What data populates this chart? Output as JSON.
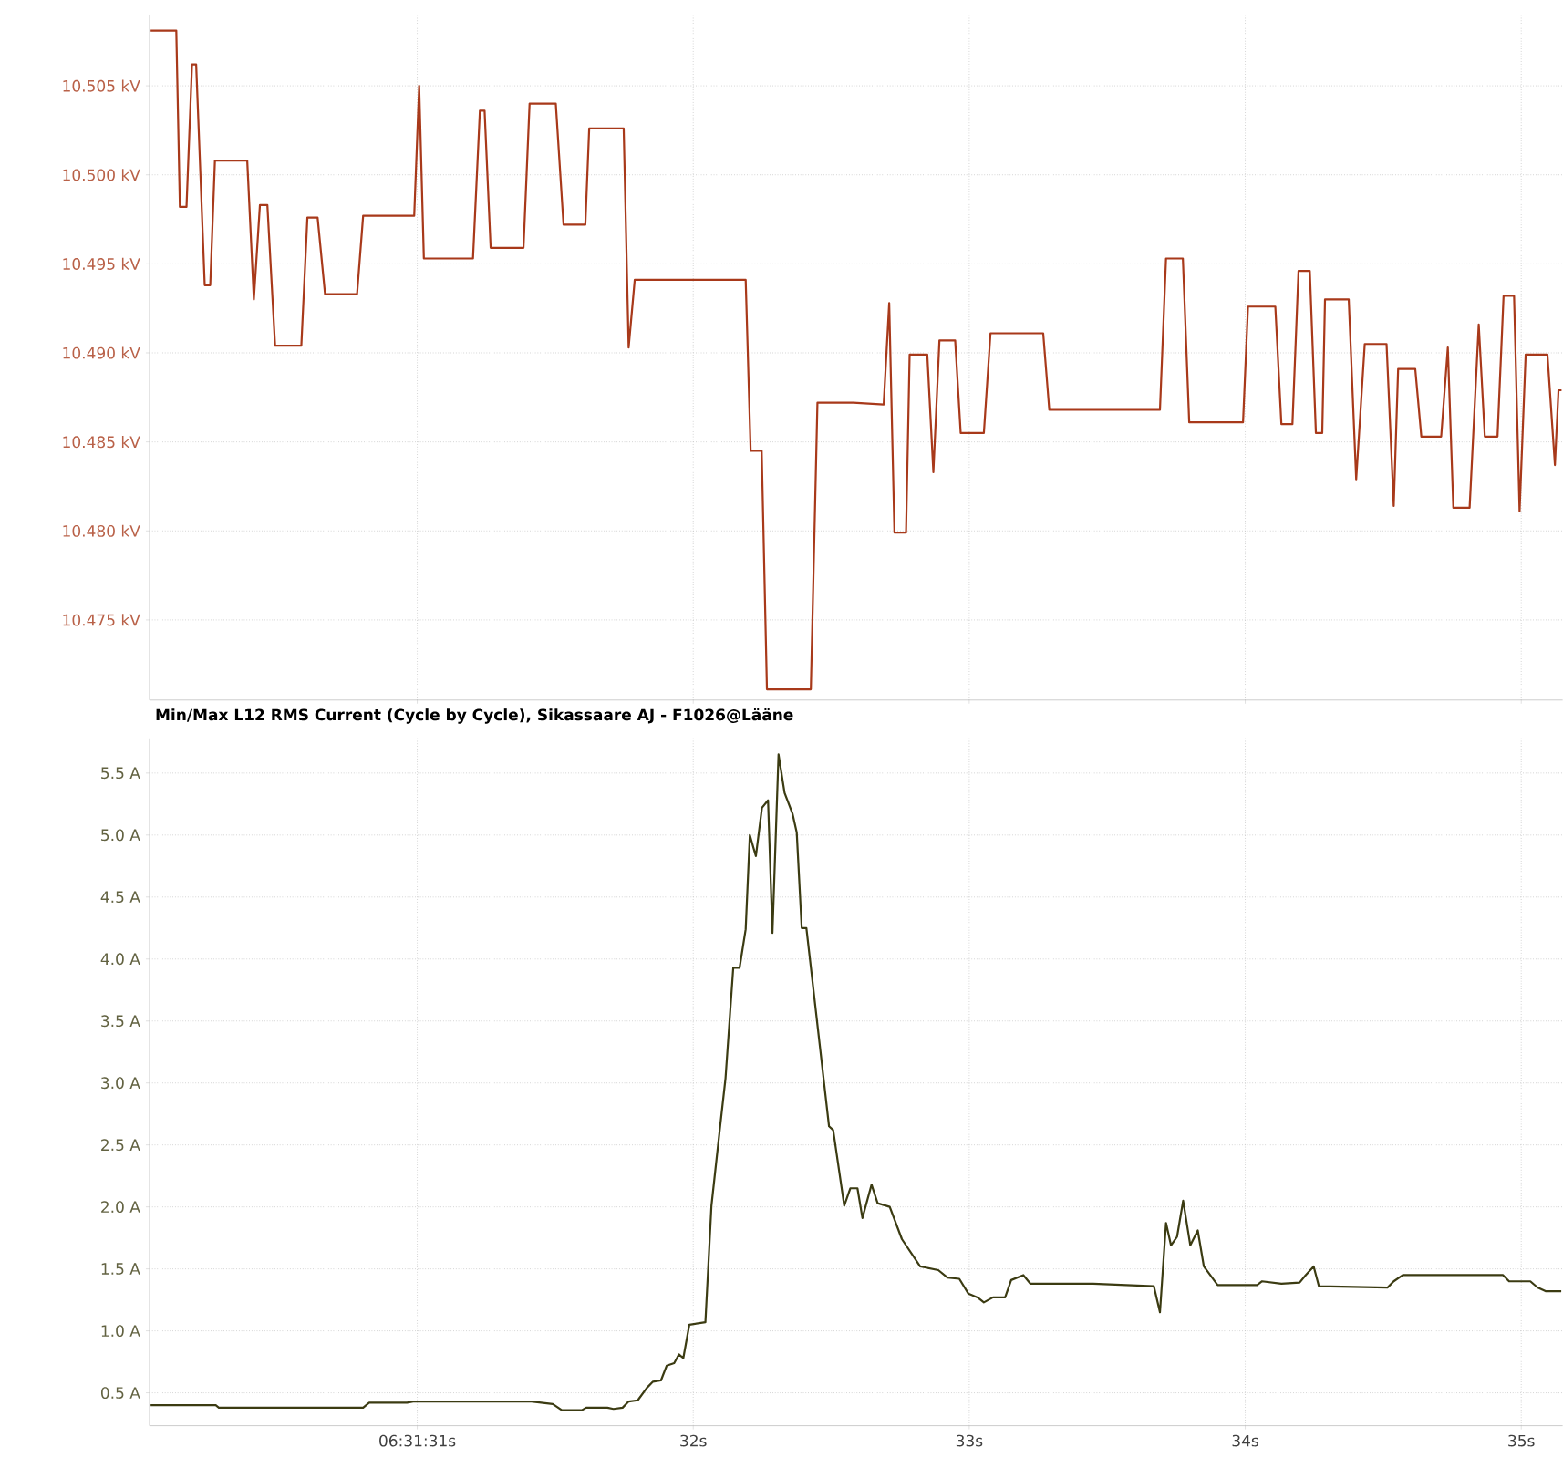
{
  "chart_data": [
    {
      "type": "line",
      "color": "#a8391a",
      "grid": true,
      "tick_labels": "y",
      "marker": "none",
      "line_style": "solid",
      "xlim": [
        30.03,
        35.15
      ],
      "ylim": [
        10.4705,
        10.509
      ],
      "xticks": [
        {
          "value": 31,
          "label": null
        },
        {
          "value": 32,
          "label": null
        },
        {
          "value": 33,
          "label": null
        },
        {
          "value": 34,
          "label": null
        },
        {
          "value": 35,
          "label": null
        }
      ],
      "yticks": [
        {
          "value": 10.475,
          "label": "10.475 kV"
        },
        {
          "value": 10.48,
          "label": "10.480 kV"
        },
        {
          "value": 10.485,
          "label": "10.485 kV"
        },
        {
          "value": 10.49,
          "label": "10.490 kV"
        },
        {
          "value": 10.495,
          "label": "10.495 kV"
        },
        {
          "value": 10.5,
          "label": "10.500 kV"
        },
        {
          "value": 10.505,
          "label": "10.505 kV"
        }
      ],
      "x": [
        30.034,
        30.127,
        30.14,
        30.164,
        30.184,
        30.199,
        30.23,
        30.25,
        30.267,
        30.384,
        30.408,
        30.43,
        30.457,
        30.485,
        30.58,
        30.602,
        30.639,
        30.666,
        30.782,
        30.804,
        30.989,
        31.007,
        31.024,
        31.202,
        31.227,
        31.244,
        31.266,
        31.385,
        31.407,
        31.502,
        31.53,
        31.609,
        31.623,
        31.748,
        31.766,
        31.788,
        32.19,
        32.208,
        32.248,
        32.267,
        32.426,
        32.45,
        32.58,
        32.69,
        32.71,
        32.729,
        32.771,
        32.784,
        32.848,
        32.87,
        32.892,
        32.949,
        32.969,
        33.053,
        33.077,
        33.268,
        33.29,
        33.691,
        33.713,
        33.774,
        33.797,
        33.992,
        34.01,
        34.109,
        34.131,
        34.171,
        34.193,
        34.234,
        34.256,
        34.279,
        34.289,
        34.375,
        34.402,
        34.433,
        34.512,
        34.538,
        34.554,
        34.616,
        34.638,
        34.71,
        34.734,
        34.754,
        34.813,
        34.846,
        34.868,
        34.914,
        34.936,
        34.974,
        34.994,
        35.016,
        35.095,
        35.122,
        35.135,
        35.146
      ],
      "values": [
        10.5081,
        10.5081,
        10.4982,
        10.4982,
        10.5062,
        10.5062,
        10.4938,
        10.4938,
        10.5008,
        10.5008,
        10.493,
        10.4983,
        10.4983,
        10.4904,
        10.4904,
        10.4976,
        10.4976,
        10.4933,
        10.4933,
        10.4977,
        10.4977,
        10.505,
        10.4953,
        10.4953,
        10.5036,
        10.5036,
        10.4959,
        10.4959,
        10.504,
        10.504,
        10.4972,
        10.4972,
        10.5026,
        10.5026,
        10.4903,
        10.4941,
        10.4941,
        10.4845,
        10.4845,
        10.4711,
        10.4711,
        10.4872,
        10.4872,
        10.4871,
        10.4928,
        10.4799,
        10.4799,
        10.4899,
        10.4899,
        10.4833,
        10.4907,
        10.4907,
        10.4855,
        10.4855,
        10.4911,
        10.4911,
        10.4868,
        10.4868,
        10.4953,
        10.4953,
        10.4861,
        10.4861,
        10.4926,
        10.4926,
        10.486,
        10.486,
        10.4946,
        10.4946,
        10.4855,
        10.4855,
        10.493,
        10.493,
        10.4829,
        10.4905,
        10.4905,
        10.4814,
        10.4891,
        10.4891,
        10.4853,
        10.4853,
        10.4903,
        10.4813,
        10.4813,
        10.4916,
        10.4853,
        10.4853,
        10.4932,
        10.4932,
        10.4811,
        10.4899,
        10.4899,
        10.4837,
        10.4879,
        10.4879
      ]
    },
    {
      "type": "line",
      "title": "Min/Max L12 RMS Current (Cycle by Cycle), Sikassaare AJ - F1026@Lääne",
      "color": "#3b3b12",
      "grid": true,
      "marker": "none",
      "line_style": "solid",
      "xlim": [
        30.03,
        35.15
      ],
      "ylim": [
        0.235,
        5.78
      ],
      "xticks": [
        {
          "value": 31,
          "label": "06:31:31s"
        },
        {
          "value": 32,
          "label": "32s"
        },
        {
          "value": 33,
          "label": "33s"
        },
        {
          "value": 34,
          "label": "34s"
        },
        {
          "value": 35,
          "label": "35s"
        }
      ],
      "yticks": [
        {
          "value": 0.5,
          "label": "0.5 A"
        },
        {
          "value": 1.0,
          "label": "1.0 A"
        },
        {
          "value": 1.5,
          "label": "1.5 A"
        },
        {
          "value": 2.0,
          "label": "2.0 A"
        },
        {
          "value": 2.5,
          "label": "2.5 A"
        },
        {
          "value": 3.0,
          "label": "3.0 A"
        },
        {
          "value": 3.5,
          "label": "3.5 A"
        },
        {
          "value": 4.0,
          "label": "4.0 A"
        },
        {
          "value": 4.5,
          "label": "4.5 A"
        },
        {
          "value": 5.0,
          "label": "5.0 A"
        },
        {
          "value": 5.5,
          "label": "5.5 A"
        }
      ],
      "x": [
        30.034,
        30.27,
        30.281,
        30.804,
        30.826,
        30.963,
        30.985,
        31.414,
        31.491,
        31.524,
        31.596,
        31.612,
        31.689,
        31.711,
        31.744,
        31.766,
        31.799,
        31.832,
        31.854,
        31.883,
        31.904,
        31.931,
        31.948,
        31.964,
        31.986,
        32.044,
        32.066,
        32.095,
        32.117,
        32.145,
        32.168,
        32.19,
        32.205,
        32.227,
        32.249,
        32.271,
        32.287,
        32.309,
        32.331,
        32.36,
        32.375,
        32.393,
        32.41,
        32.492,
        32.507,
        32.547,
        32.569,
        32.595,
        32.613,
        32.646,
        32.668,
        32.712,
        32.756,
        32.822,
        32.888,
        32.921,
        32.964,
        32.997,
        33.03,
        33.053,
        33.086,
        33.13,
        33.152,
        33.196,
        33.222,
        33.449,
        33.669,
        33.691,
        33.713,
        33.731,
        33.753,
        33.775,
        33.801,
        33.828,
        33.85,
        33.9,
        34.043,
        34.061,
        34.131,
        34.197,
        34.219,
        34.248,
        34.267,
        34.516,
        34.538,
        34.571,
        34.934,
        34.956,
        35.033,
        35.059,
        35.088,
        35.145
      ],
      "values": [
        0.4,
        0.4,
        0.38,
        0.38,
        0.42,
        0.42,
        0.43,
        0.43,
        0.41,
        0.36,
        0.36,
        0.38,
        0.38,
        0.37,
        0.38,
        0.43,
        0.44,
        0.54,
        0.59,
        0.6,
        0.72,
        0.74,
        0.81,
        0.78,
        1.05,
        1.07,
        2.01,
        2.6,
        3.04,
        3.93,
        3.93,
        4.24,
        5.0,
        4.83,
        5.22,
        5.28,
        4.21,
        5.65,
        5.34,
        5.17,
        5.02,
        4.25,
        4.25,
        2.65,
        2.62,
        2.01,
        2.15,
        2.15,
        1.91,
        2.18,
        2.03,
        2.0,
        1.74,
        1.52,
        1.49,
        1.43,
        1.42,
        1.3,
        1.27,
        1.23,
        1.27,
        1.27,
        1.41,
        1.45,
        1.38,
        1.38,
        1.36,
        1.15,
        1.87,
        1.69,
        1.76,
        2.05,
        1.69,
        1.81,
        1.52,
        1.37,
        1.37,
        1.4,
        1.38,
        1.39,
        1.45,
        1.52,
        1.36,
        1.35,
        1.4,
        1.45,
        1.45,
        1.4,
        1.4,
        1.35,
        1.32,
        1.32
      ]
    }
  ]
}
